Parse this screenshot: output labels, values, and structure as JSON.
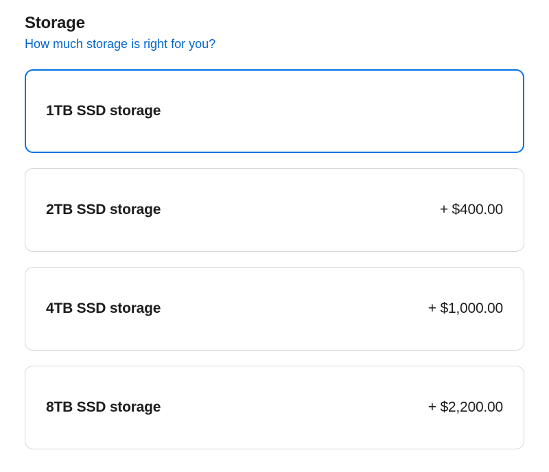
{
  "storage": {
    "title": "Storage",
    "help_link_text": "How much storage is right for you?",
    "selected_index": 0,
    "options": [
      {
        "label": "1TB SSD storage",
        "price": ""
      },
      {
        "label": "2TB SSD storage",
        "price": "+ $400.00"
      },
      {
        "label": "4TB SSD storage",
        "price": "+ $1,000.00"
      },
      {
        "label": "8TB SSD storage",
        "price": "+ $2,200.00"
      }
    ],
    "colors": {
      "accent": "#0071e3",
      "link": "#0066cc",
      "text": "#1d1d1f",
      "border": "#d6d6d6",
      "background": "#ffffff"
    }
  }
}
